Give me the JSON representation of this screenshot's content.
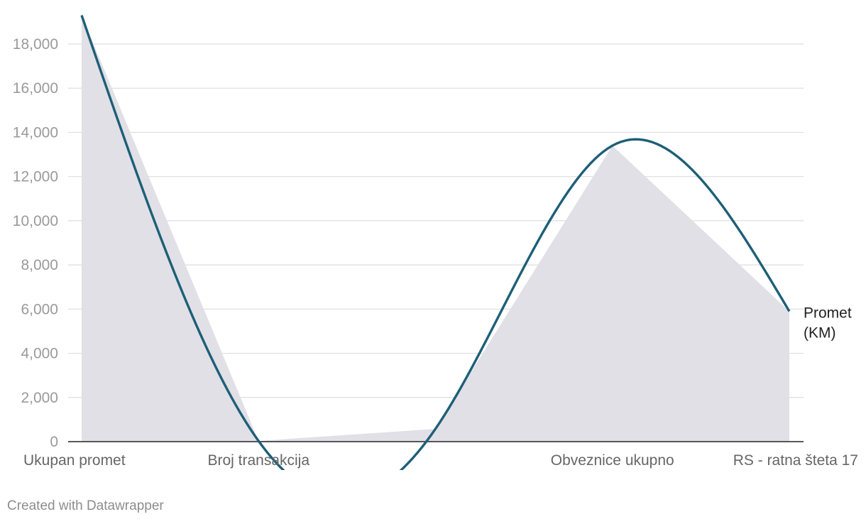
{
  "chart_data": {
    "type": "line",
    "categories": [
      "Ukupan promet",
      "Broj transakcija",
      "",
      "Obveznice ukupno",
      "RS - ratna šteta 17"
    ],
    "series": [
      {
        "name": "Promet (KM)",
        "values": [
          19300,
          30,
          580,
          13400,
          5900
        ],
        "color": "#1d5f77"
      }
    ],
    "area_fill_color": "#e1e0e6",
    "y_ticks": [
      0,
      2000,
      4000,
      6000,
      8000,
      10000,
      12000,
      14000,
      16000,
      18000
    ],
    "y_tick_labels": [
      "0",
      "2,000",
      "4,000",
      "6,000",
      "8,000",
      "10,000",
      "12,000",
      "14,000",
      "16,000",
      "18,000"
    ],
    "ylim": [
      0,
      18000
    ],
    "grid": true,
    "series_label": [
      "Promet",
      "(KM)"
    ],
    "credit": "Created with Datawrapper"
  }
}
